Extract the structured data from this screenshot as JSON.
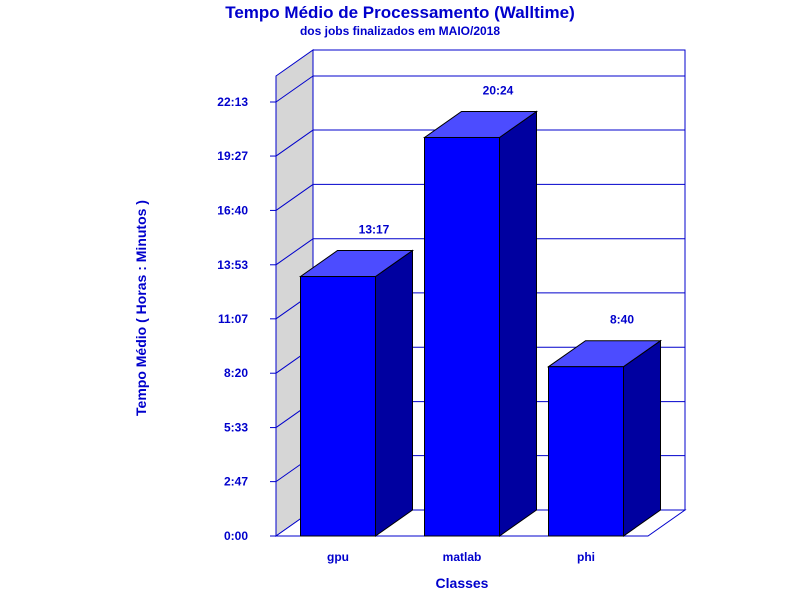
{
  "chart_data": {
    "type": "bar",
    "title": "Tempo Médio de Processamento (Walltime)",
    "subtitle": "dos jobs finalizados em MAIO/2018",
    "xlabel": "Classes",
    "ylabel": "Tempo Médio ( Horas : Minutos )",
    "categories": [
      "gpu",
      "matlab",
      "phi"
    ],
    "values": [
      13.283,
      20.4,
      8.667
    ],
    "value_labels": [
      "13:17",
      "20:24",
      "8:40"
    ],
    "y_ticks": [
      0,
      2.7833,
      5.55,
      8.3333,
      11.1167,
      13.8833,
      16.6667,
      19.45,
      22.2167
    ],
    "y_tick_labels": [
      "0:00",
      "2:47",
      "5:33",
      "8:20",
      "11:07",
      "13:53",
      "16:40",
      "19:27",
      "22:13"
    ],
    "ylim": [
      0,
      22.2167
    ],
    "grid": true,
    "style": "3d-bar",
    "colors": {
      "text": "#0000cc",
      "frame": "#0000cc",
      "bar_front": "#0000ff",
      "bar_top": "#4c4cff",
      "bar_side": "#0000a0",
      "back_wall": "#d6d6d6"
    }
  }
}
